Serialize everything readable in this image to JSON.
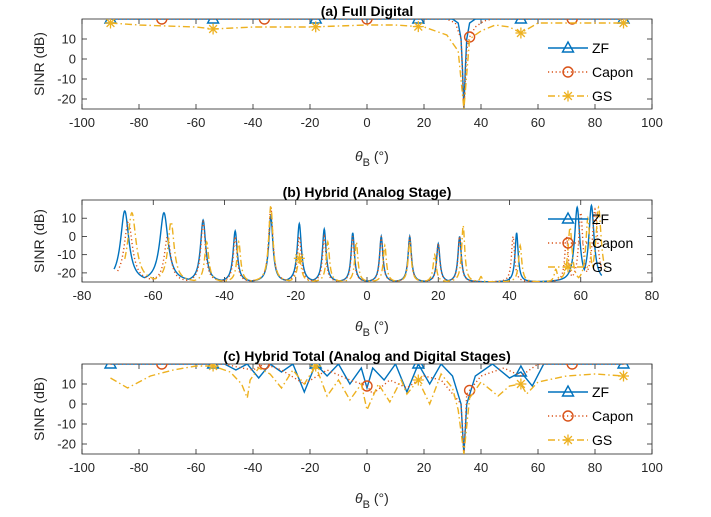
{
  "colors": {
    "ZF": "#0072BD",
    "Capon": "#D95319",
    "GS": "#EDB120",
    "axis": "#262626"
  },
  "chart_data": [
    {
      "type": "line",
      "title": "(a) Full Digital",
      "xlabel_main": "θ",
      "xlabel_sub": "B",
      "xlabel_unit": " (°)",
      "ylabel": "SINR (dB)",
      "xlim": [
        -100,
        100
      ],
      "ylim": [
        -25,
        20
      ],
      "xticks": [
        "-100",
        "-80",
        "-60",
        "-40",
        "-20",
        "0",
        "20",
        "40",
        "60",
        "80",
        "100"
      ],
      "yticks": [
        "10",
        "0",
        "-10",
        "-20"
      ],
      "legend": [
        "ZF",
        "Capon",
        "GS"
      ],
      "legend_position": "right",
      "series": [
        {
          "name": "ZF",
          "style": "solid",
          "marker": "triangle",
          "markers_x": [
            -90,
            -54,
            -18,
            18,
            54,
            90
          ],
          "x": [
            -90,
            30,
            32,
            33,
            33.5,
            34,
            34.5,
            35,
            36,
            38,
            90
          ],
          "y": [
            20,
            20,
            18,
            10,
            -5,
            -27,
            -5,
            10,
            18,
            20,
            20
          ]
        },
        {
          "name": "Capon",
          "style": "dotted",
          "marker": "circle",
          "markers_x": [
            -72,
            -36,
            0,
            36,
            72
          ],
          "x": [
            -90,
            28,
            31,
            33,
            34,
            35,
            36,
            38,
            41,
            44,
            90
          ],
          "y": [
            20,
            20,
            18,
            10,
            -27,
            5,
            11,
            16,
            19,
            20,
            20
          ]
        },
        {
          "name": "GS",
          "style": "dashdot",
          "marker": "asterisk",
          "markers_x": [
            -90,
            -54,
            -18,
            18,
            54,
            90
          ],
          "x": [
            -90,
            -80,
            -60,
            -54,
            -40,
            -20,
            0,
            10,
            20,
            28,
            32,
            34,
            36,
            40,
            45,
            50,
            54,
            60,
            70,
            80,
            90
          ],
          "y": [
            18,
            17,
            16,
            15,
            16,
            16,
            17,
            17,
            16,
            12,
            4,
            -27,
            10,
            14,
            17,
            16,
            13,
            18,
            18,
            18,
            18
          ]
        }
      ]
    },
    {
      "type": "line",
      "title": "(b) Hybrid (Analog Stage)",
      "xlabel_main": "θ",
      "xlabel_sub": "B",
      "xlabel_unit": " (°)",
      "ylabel": "SINR (dB)",
      "xlim": [
        -80,
        80
      ],
      "ylim": [
        -25,
        20
      ],
      "xticks": [
        "-80",
        "-60",
        "-40",
        "-20",
        "0",
        "20",
        "40",
        "60",
        "80"
      ],
      "yticks": [
        "10",
        "0",
        "-10",
        "-20"
      ],
      "legend": [
        "ZF",
        "Capon",
        "GS"
      ],
      "legend_position": "right",
      "baseline": -25,
      "series": [
        {
          "name": "ZF",
          "style": "solid",
          "marker": "triangle",
          "markers_x": [],
          "peaks": [
            [
              -68,
              14,
              4
            ],
            [
              -57,
              13,
              4
            ],
            [
              -46,
              9,
              2.5
            ],
            [
              -37,
              3,
              2
            ],
            [
              -27,
              11,
              2
            ],
            [
              -19,
              7,
              2
            ],
            [
              -12,
              4,
              1.8
            ],
            [
              -4,
              2,
              1.6
            ],
            [
              4,
              0,
              1.6
            ],
            [
              12,
              0,
              1.6
            ],
            [
              20,
              -4,
              1.6
            ],
            [
              26,
              0,
              1.6
            ],
            [
              42,
              2,
              1.5
            ],
            [
              59,
              16,
              2.5
            ],
            [
              63,
              17,
              2.5
            ]
          ],
          "x_min": -71,
          "x_max": 66
        },
        {
          "name": "Capon",
          "style": "dotted",
          "marker": "circle",
          "markers_x": [],
          "peaks": [
            [
              -67,
              8,
              4
            ],
            [
              -56,
              0,
              3
            ],
            [
              -46,
              8,
              2.2
            ],
            [
              -37,
              0,
              1.8
            ],
            [
              -27,
              16,
              2
            ],
            [
              -19,
              0,
              1.8
            ],
            [
              -12,
              0,
              1.6
            ],
            [
              -4,
              0,
              1.5
            ],
            [
              4,
              0,
              1.5
            ],
            [
              12,
              0,
              1.5
            ],
            [
              20,
              -4,
              1.5
            ],
            [
              26,
              0,
              1.5
            ],
            [
              41,
              0,
              1.5
            ],
            [
              56,
              0,
              1.6
            ],
            [
              60,
              13,
              2
            ],
            [
              64,
              15,
              2.5
            ]
          ],
          "x_min": -70,
          "x_max": 66
        },
        {
          "name": "GS",
          "style": "dashdot",
          "marker": "asterisk",
          "markers_x": [
            -19
          ],
          "marker_y": -12,
          "peaks": [
            [
              -66,
              13,
              4
            ],
            [
              -55,
              8,
              3
            ],
            [
              -45,
              -3,
              2
            ],
            [
              -36,
              -3,
              1.8
            ],
            [
              -27,
              17,
              2
            ],
            [
              -19,
              -12,
              2
            ],
            [
              -11,
              -3,
              1.6
            ],
            [
              -3,
              -3,
              1.5
            ],
            [
              5,
              -5,
              1.5
            ],
            [
              12,
              -3,
              1.5
            ],
            [
              19,
              -10,
              1.5
            ],
            [
              27,
              6,
              1.5
            ],
            [
              32,
              -22,
              1.2
            ],
            [
              43,
              -5,
              1.5
            ],
            [
              53,
              -18,
              1.5
            ],
            [
              57,
              5,
              2
            ],
            [
              62,
              10,
              2
            ],
            [
              65,
              16,
              2.5
            ]
          ],
          "x_min": -68,
          "x_max": 67
        }
      ]
    },
    {
      "type": "line",
      "title": "(c) Hybrid Total (Analog and Digital Stages)",
      "xlabel_main": "θ",
      "xlabel_sub": "B",
      "xlabel_unit": " (°)",
      "ylabel": "SINR (dB)",
      "xlim": [
        -100,
        100
      ],
      "ylim": [
        -25,
        20
      ],
      "xticks": [
        "-100",
        "-80",
        "-60",
        "-40",
        "-20",
        "0",
        "20",
        "40",
        "60",
        "80",
        "100"
      ],
      "yticks": [
        "10",
        "0",
        "-10",
        "-20"
      ],
      "legend": [
        "ZF",
        "Capon",
        "GS"
      ],
      "legend_position": "right",
      "series": [
        {
          "name": "ZF",
          "style": "solid",
          "marker": "triangle",
          "markers_x": [
            -90,
            -54,
            -18,
            18,
            54,
            90
          ],
          "x": [
            -90,
            -50,
            -46,
            -42,
            -38,
            -34,
            -30,
            -26,
            -22,
            -18,
            -14,
            -10,
            -6,
            -2,
            0,
            2,
            6,
            10,
            14,
            18,
            22,
            26,
            30,
            33,
            34,
            35,
            38,
            44,
            50,
            54,
            58,
            62,
            90
          ],
          "y": [
            20,
            20,
            17,
            20,
            13,
            20,
            16,
            20,
            6,
            20,
            14,
            20,
            10,
            18,
            8,
            18,
            12,
            20,
            6,
            20,
            10,
            20,
            14,
            0,
            -27,
            0,
            14,
            20,
            13,
            16,
            9,
            20,
            20
          ]
        },
        {
          "name": "Capon",
          "style": "dotted",
          "marker": "circle",
          "markers_x": [
            -72,
            -36,
            0,
            36,
            72
          ],
          "x": [
            -90,
            -50,
            -44,
            -40,
            -36,
            -30,
            -22,
            -14,
            -6,
            0,
            2,
            8,
            14,
            20,
            26,
            33,
            34,
            35,
            40,
            48,
            54,
            60,
            72,
            90
          ],
          "y": [
            20,
            20,
            18,
            17,
            20,
            17,
            10,
            17,
            12,
            9,
            5,
            12,
            8,
            14,
            12,
            0,
            -27,
            5,
            14,
            18,
            14,
            20,
            20,
            20
          ]
        },
        {
          "name": "GS",
          "style": "dashdot",
          "marker": "asterisk",
          "markers_x": [
            -54,
            -18,
            18,
            54,
            90
          ],
          "x": [
            -90,
            -84,
            -76,
            -68,
            -60,
            -54,
            -48,
            -44,
            -42,
            -41,
            -38,
            -34,
            -30,
            -26,
            -22,
            -18,
            -14,
            -10,
            -6,
            -2,
            0,
            4,
            8,
            12,
            14,
            18,
            22,
            26,
            30,
            32,
            34,
            36,
            40,
            46,
            50,
            54,
            56,
            60,
            70,
            80,
            90
          ],
          "y": [
            13,
            8,
            14,
            17,
            19,
            19,
            16,
            10,
            3,
            12,
            18,
            15,
            8,
            17,
            10,
            19,
            4,
            12,
            2,
            10,
            -3,
            10,
            1,
            12,
            5,
            12,
            0,
            15,
            8,
            -3,
            -27,
            3,
            11,
            4,
            9,
            10,
            5,
            11,
            14,
            15,
            14
          ]
        }
      ]
    }
  ]
}
